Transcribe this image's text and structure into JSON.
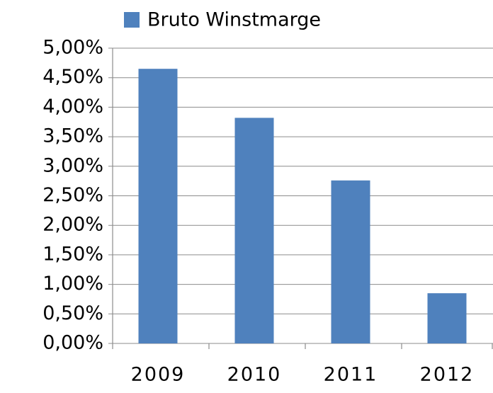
{
  "chart_data": {
    "type": "bar",
    "categories": [
      "2009",
      "2010",
      "2011",
      "2012"
    ],
    "series": [
      {
        "name": "Bruto Winstmarge",
        "color": "#4f81bd",
        "values": [
          4.65,
          3.82,
          2.76,
          0.85
        ]
      }
    ],
    "ylim": [
      0,
      5
    ],
    "yticks": [
      {
        "value": 0,
        "label": "0,00%"
      },
      {
        "value": 0.5,
        "label": "0,50%"
      },
      {
        "value": 1,
        "label": "1,00%"
      },
      {
        "value": 1.5,
        "label": "1,50%"
      },
      {
        "value": 2,
        "label": "2,00%"
      },
      {
        "value": 2.5,
        "label": "2,50%"
      },
      {
        "value": 3,
        "label": "3,00%"
      },
      {
        "value": 3.5,
        "label": "3,50%"
      },
      {
        "value": 4,
        "label": "4,00%"
      },
      {
        "value": 4.5,
        "label": "4,50%"
      },
      {
        "value": 5,
        "label": "5,00%"
      }
    ],
    "grid": true,
    "legend": "top"
  }
}
